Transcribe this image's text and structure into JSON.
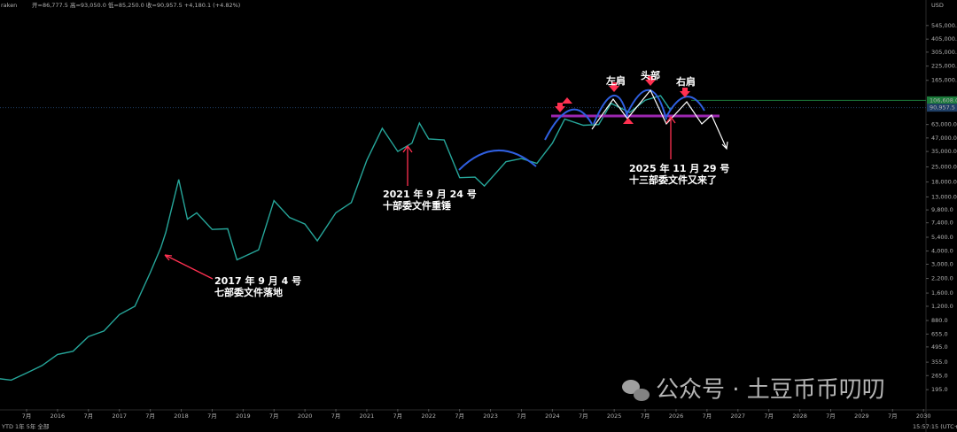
{
  "chart_data": {
    "type": "line",
    "header": {
      "symbol": "raken",
      "ohlc": "开=86,777.5 高=93,050.0 低=85,250.0 收=90,957.5 +4,180.1 (+4.82%)",
      "currency": "USD"
    },
    "footer": {
      "ranges": "YTD  1年  5年  全部",
      "time": "15:57:15 (UTC+8)"
    },
    "log_scale": true,
    "xlim": [
      2015.07,
      2030.04
    ],
    "xticks": [
      {
        "value": 2015.5,
        "label": "7月"
      },
      2016,
      {
        "value": 2016.5,
        "label": "7月"
      },
      2017,
      {
        "value": 2017.5,
        "label": "7月"
      },
      2018,
      {
        "value": 2018.5,
        "label": "7月"
      },
      2019,
      {
        "value": 2019.5,
        "label": "7月"
      },
      2020,
      {
        "value": 2020.5,
        "label": "7月"
      },
      2021,
      {
        "value": 2021.5,
        "label": "7月"
      },
      2022,
      {
        "value": 2022.5,
        "label": "7月"
      },
      2023,
      {
        "value": 2023.5,
        "label": "7月"
      },
      2024,
      {
        "value": 2024.5,
        "label": "7月"
      },
      2025,
      {
        "value": 2025.5,
        "label": "7月"
      },
      2026,
      {
        "value": 2026.5,
        "label": "7月"
      },
      2027,
      {
        "value": 2027.5,
        "label": "7月"
      },
      2028,
      {
        "value": 2028.5,
        "label": "7月"
      },
      2029,
      {
        "value": 2029.5,
        "label": "7月"
      },
      2030
    ],
    "ylim": [
      128,
      950000
    ],
    "yticks": [
      {
        "value": 545000,
        "label": "545,000.0"
      },
      {
        "value": 405000,
        "label": "405,000.0"
      },
      {
        "value": 305000,
        "label": "305,000.0"
      },
      {
        "value": 225000,
        "label": "225,000.0"
      },
      {
        "value": 165000,
        "label": "165,000.0"
      },
      {
        "value": 63000,
        "label": "63,000.0"
      },
      {
        "value": 47000,
        "label": "47,000.0"
      },
      {
        "value": 35000,
        "label": "35,000.0"
      },
      {
        "value": 25000,
        "label": "25,000.0"
      },
      {
        "value": 18000,
        "label": "18,000.0"
      },
      {
        "value": 13000,
        "label": "13,000.0"
      },
      {
        "value": 9800,
        "label": "9,800.0"
      },
      {
        "value": 7400,
        "label": "7,400.0"
      },
      {
        "value": 5400,
        "label": "5,400.0"
      },
      {
        "value": 4000,
        "label": "4,000.0"
      },
      {
        "value": 3000,
        "label": "3,000.0"
      },
      {
        "value": 2200,
        "label": "2,200.0"
      },
      {
        "value": 1600,
        "label": "1,600.0"
      },
      {
        "value": 1200,
        "label": "1,200.0"
      },
      {
        "value": 880,
        "label": "880.0"
      },
      {
        "value": 655,
        "label": "655.0"
      },
      {
        "value": 495,
        "label": "495.0"
      },
      {
        "value": 355,
        "label": "355.0"
      },
      {
        "value": 265,
        "label": "265.0"
      },
      {
        "value": 195,
        "label": "195.0"
      }
    ],
    "price_lines": [
      {
        "value": 106608,
        "label": "106,608.0",
        "color": "#1b7a3a"
      },
      {
        "value": 90957.5,
        "label": "90,957.5",
        "color": "#1f3f66"
      }
    ],
    "x": [
      2015.0,
      2015.25,
      2015.5,
      2015.75,
      2016.0,
      2016.25,
      2016.5,
      2016.75,
      2017.0,
      2017.25,
      2017.5,
      2017.67,
      2017.75,
      2017.96,
      2018.1,
      2018.25,
      2018.5,
      2018.75,
      2018.9,
      2019.25,
      2019.5,
      2019.75,
      2020.0,
      2020.2,
      2020.5,
      2020.75,
      2021.0,
      2021.25,
      2021.5,
      2021.73,
      2021.85,
      2022.0,
      2022.25,
      2022.5,
      2022.75,
      2022.9,
      2023.25,
      2023.5,
      2023.75,
      2024.0,
      2024.2,
      2024.5,
      2024.75,
      2024.95,
      2025.25,
      2025.5,
      2025.75,
      2025.9,
      2025.95
    ],
    "series": [
      {
        "color": "#26a69a",
        "values": [
          250,
          240,
          280,
          330,
          420,
          450,
          620,
          700,
          1000,
          1200,
          2500,
          4300,
          6000,
          19000,
          8000,
          9200,
          6400,
          6500,
          3300,
          4100,
          12000,
          8300,
          7200,
          5000,
          9200,
          11500,
          29000,
          58000,
          35000,
          42000,
          65000,
          46000,
          45000,
          19800,
          20000,
          16500,
          28000,
          30000,
          27000,
          42000,
          71000,
          62000,
          63000,
          100000,
          82000,
          107000,
          118000,
          88000,
          90957.5
        ]
      }
    ],
    "annotations": [
      "2017 年 9 月 4 号",
      "七部委文件落地",
      "2021 年 9 月 24 号",
      "十部委文件重锤",
      "2025 年 11 月 29 号",
      "十三部委文件又来了",
      "左肩",
      "头部",
      "右肩"
    ],
    "watermark": "公众号 · 土豆币币叨叨"
  }
}
